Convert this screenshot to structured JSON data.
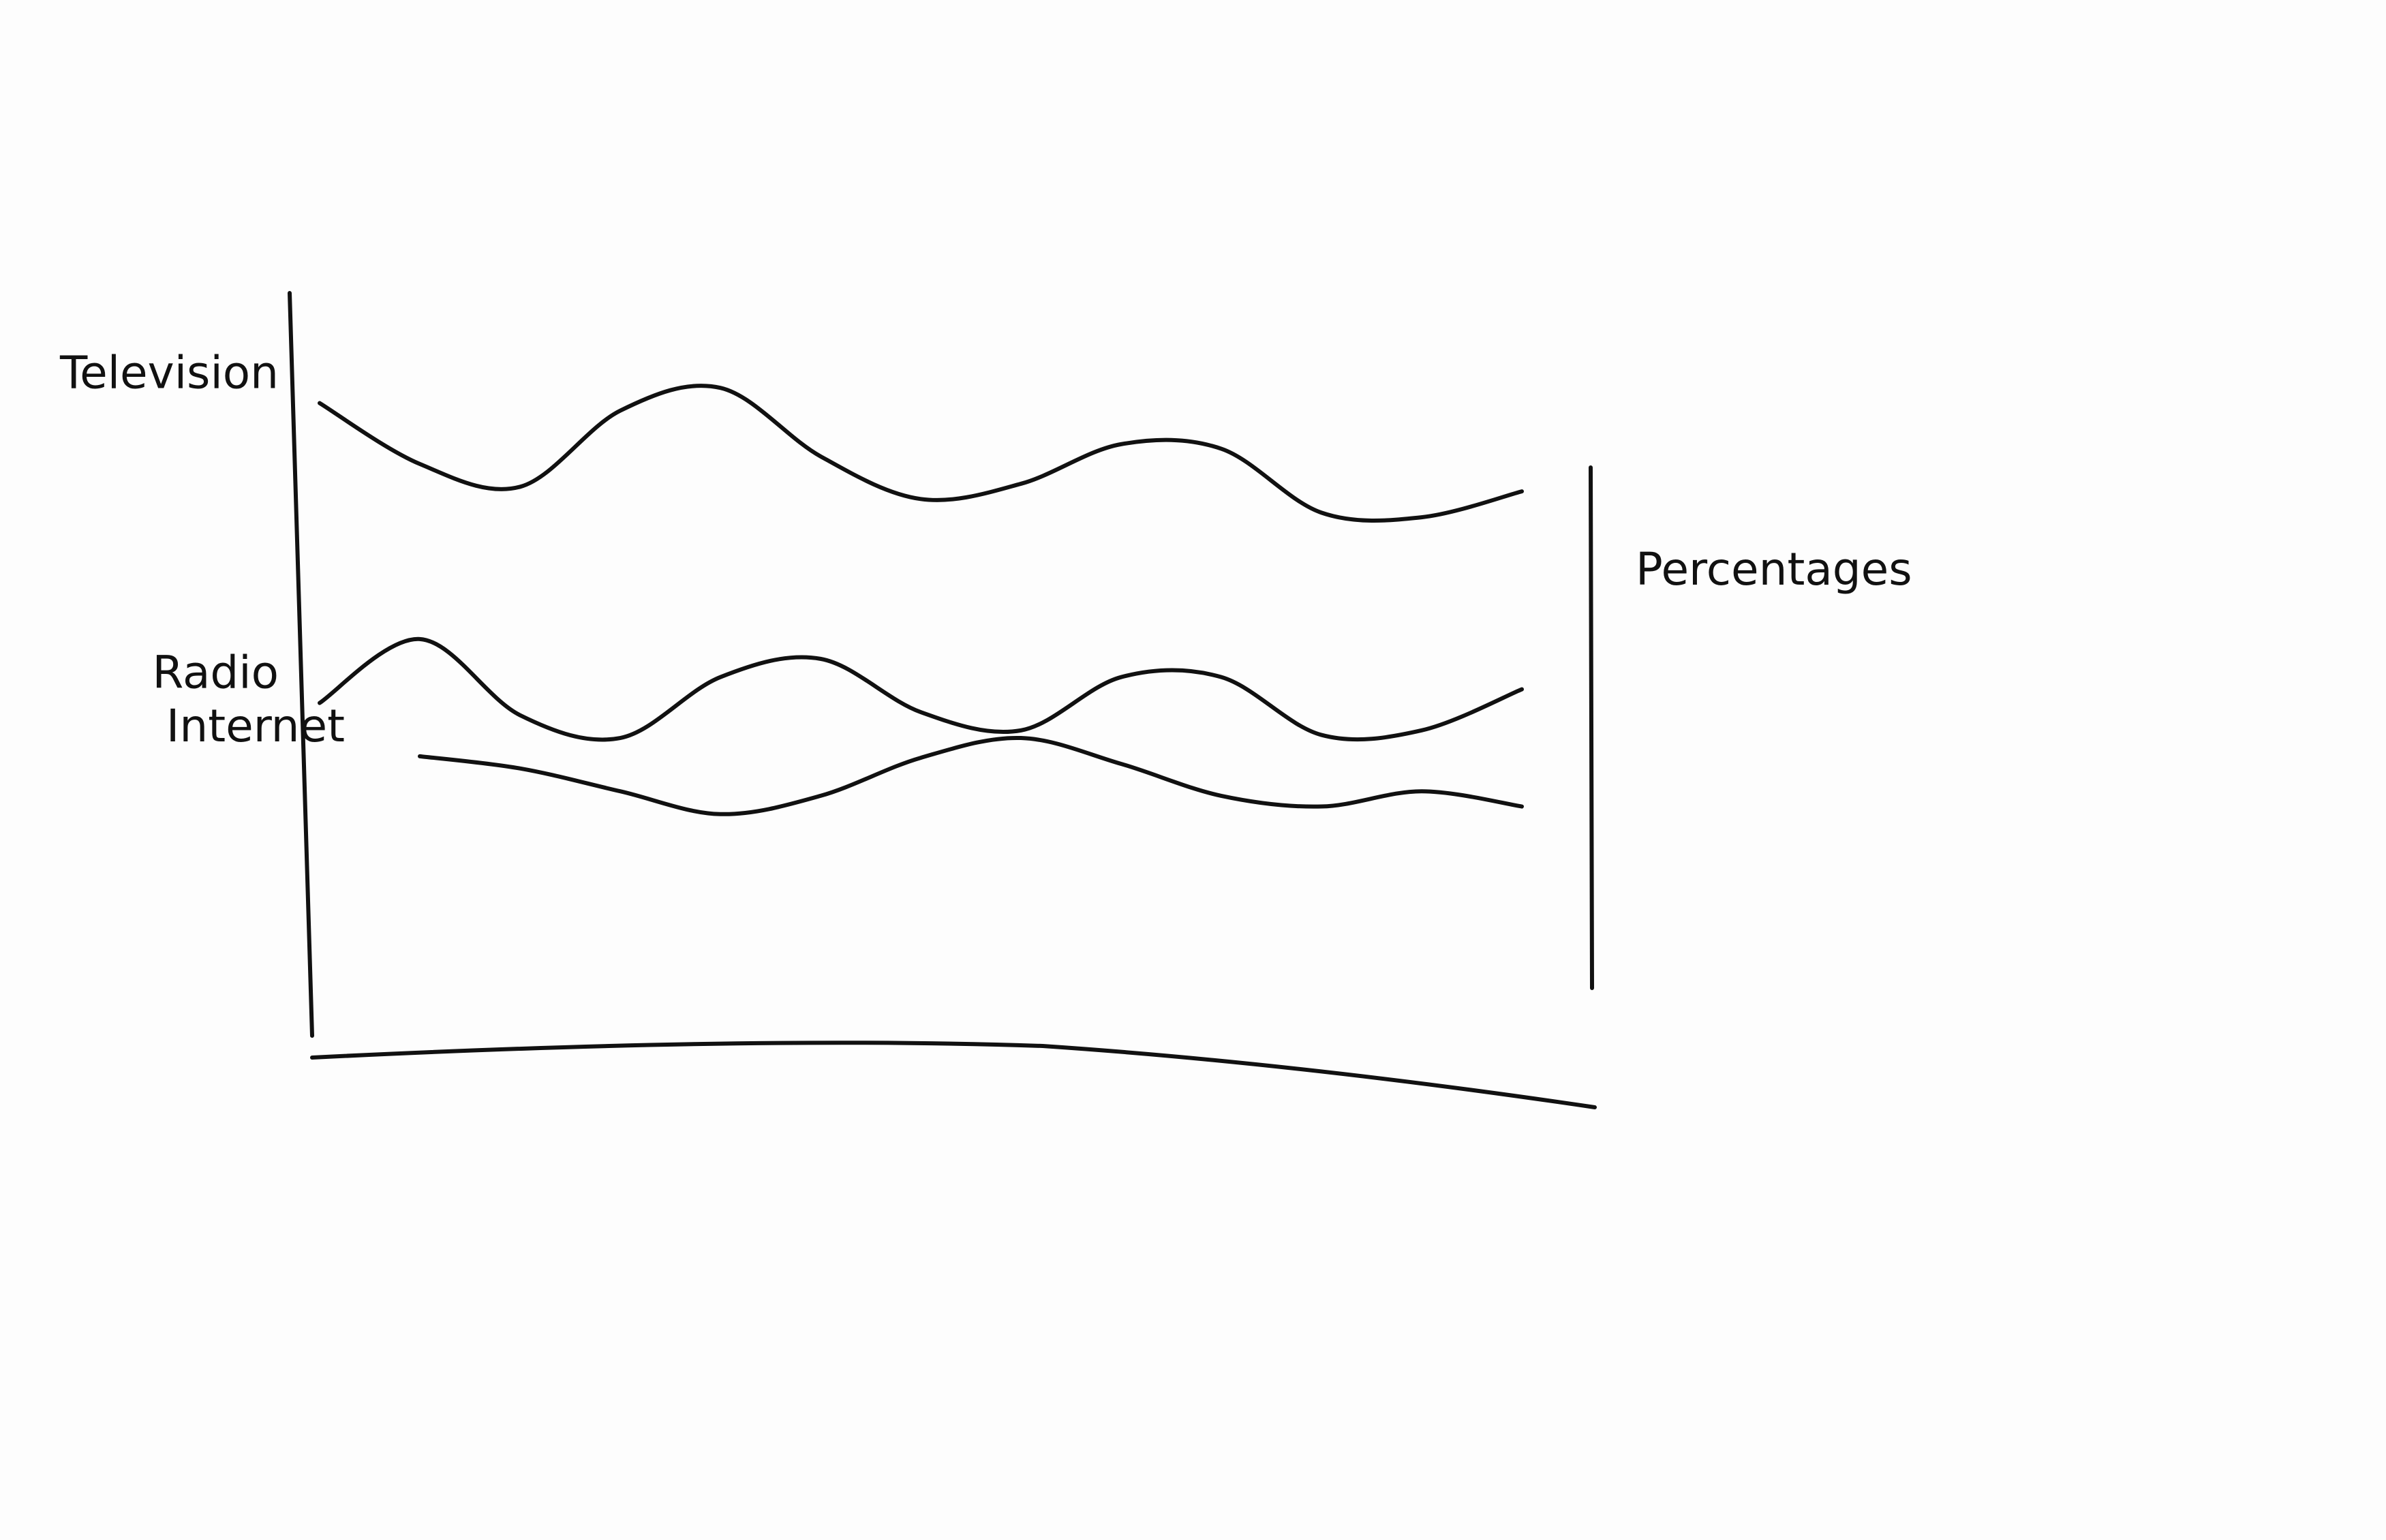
{
  "chart_data": {
    "type": "line",
    "y_label": "Percentages",
    "categories": [
      null,
      null,
      null,
      null,
      null,
      null,
      null,
      null,
      null,
      null,
      null,
      null,
      null
    ],
    "ylim": [
      0,
      100
    ],
    "series": [
      {
        "name": "Television",
        "color": "#111111",
        "values": [
          85,
          77,
          74,
          84,
          87,
          78,
          72.4,
          74.4,
          79.6,
          79,
          70.6,
          70,
          73.4
        ]
      },
      {
        "name": "Radio",
        "color": "#111111",
        "values": [
          45.6,
          54,
          44,
          41,
          49,
          51.4,
          44.4,
          42,
          49,
          49,
          41.4,
          42,
          47.4
        ]
      },
      {
        "name": "Internet",
        "color": "#111111",
        "values": [
          null,
          38.6,
          37,
          34,
          31,
          33.4,
          38.4,
          41,
          37.6,
          33.4,
          32,
          34,
          32
        ]
      }
    ]
  }
}
